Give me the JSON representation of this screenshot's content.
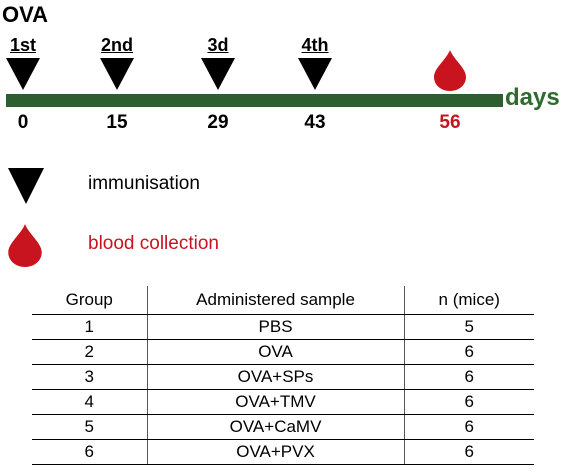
{
  "title": "OVA",
  "timeline": {
    "immunisations": [
      {
        "label": "1st",
        "day": "0"
      },
      {
        "label": "2nd",
        "day": "15"
      },
      {
        "label": "3d",
        "day": "29"
      },
      {
        "label": "4th",
        "day": "43"
      }
    ],
    "collection_day": "56",
    "axis_label": "days"
  },
  "legend": {
    "immunisation": "immunisation",
    "blood_collection": "blood collection"
  },
  "colors": {
    "timeline": "#2e5e30",
    "days_label": "#2e6b2f",
    "blood": "#c8141e"
  },
  "table": {
    "headers": [
      "Group",
      "Administered sample",
      "n (mice)"
    ],
    "rows": [
      [
        "1",
        "PBS",
        "5"
      ],
      [
        "2",
        "OVA",
        "6"
      ],
      [
        "3",
        "OVA+SPs",
        "6"
      ],
      [
        "4",
        "OVA+TMV",
        "6"
      ],
      [
        "5",
        "OVA+CaMV",
        "6"
      ],
      [
        "6",
        "OVA+PVX",
        "6"
      ]
    ]
  }
}
